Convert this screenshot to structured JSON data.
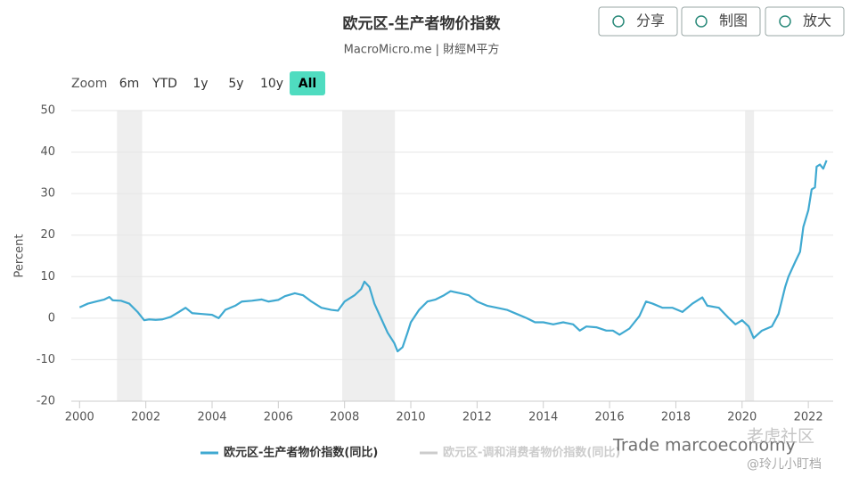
{
  "chart_data": {
    "type": "line",
    "title": "欧元区-生产者物价指数",
    "subtitle": "MacroMicro.me | 財經M平方",
    "y_label": "Percent",
    "buttons": [
      "分享",
      "制图",
      "放大"
    ],
    "zoom_label": "Zoom",
    "zoom_options": [
      "6m",
      "YTD",
      "1y",
      "5y",
      "10y",
      "All"
    ],
    "zoom_active": "All",
    "xlim": [
      1999.75,
      2022.75
    ],
    "xticks": [
      2000,
      2002,
      2004,
      2006,
      2008,
      2010,
      2012,
      2014,
      2016,
      2018,
      2020,
      2022
    ],
    "ylim": [
      -20,
      50
    ],
    "yticks": [
      -20,
      -10,
      0,
      10,
      20,
      30,
      40,
      50
    ],
    "grid": true,
    "shaded_ranges": [
      [
        2001.13,
        2001.89
      ],
      [
        2007.93,
        2009.52
      ],
      [
        2020.09,
        2020.36
      ]
    ],
    "shade_color": "#eeeeee",
    "x": [
      2000.0,
      2000.25,
      2000.5,
      2000.75,
      2000.9,
      2001.0,
      2001.25,
      2001.5,
      2001.75,
      2001.95,
      2002.1,
      2002.3,
      2002.5,
      2002.75,
      2003.0,
      2003.2,
      2003.4,
      2003.7,
      2004.0,
      2004.2,
      2004.4,
      2004.7,
      2004.9,
      2005.2,
      2005.5,
      2005.7,
      2006.0,
      2006.2,
      2006.5,
      2006.75,
      2007.0,
      2007.3,
      2007.6,
      2007.8,
      2008.0,
      2008.3,
      2008.5,
      2008.6,
      2008.75,
      2008.9,
      2009.1,
      2009.3,
      2009.5,
      2009.6,
      2009.75,
      2009.9,
      2010.0,
      2010.25,
      2010.5,
      2010.75,
      2011.0,
      2011.2,
      2011.5,
      2011.75,
      2012.0,
      2012.3,
      2012.6,
      2012.9,
      2013.2,
      2013.5,
      2013.75,
      2014.0,
      2014.3,
      2014.6,
      2014.9,
      2015.1,
      2015.3,
      2015.6,
      2015.9,
      2016.1,
      2016.3,
      2016.6,
      2016.9,
      2017.1,
      2017.3,
      2017.6,
      2017.9,
      2018.2,
      2018.5,
      2018.8,
      2018.95,
      2019.3,
      2019.6,
      2019.8,
      2020.0,
      2020.2,
      2020.35,
      2020.6,
      2020.9,
      2021.1,
      2021.3,
      2021.4,
      2021.6,
      2021.75,
      2021.85,
      2022.0,
      2022.1,
      2022.2,
      2022.25,
      2022.35,
      2022.45,
      2022.55
    ],
    "series": [
      {
        "name": "欧元区-生产者物价指数(同比)",
        "color": "#3fa9d1",
        "values": [
          2.6,
          3.5,
          4.0,
          4.5,
          5.1,
          4.3,
          4.2,
          3.5,
          1.5,
          -0.5,
          -0.3,
          -0.4,
          -0.3,
          0.3,
          1.5,
          2.5,
          1.2,
          1.0,
          0.8,
          0.0,
          2.0,
          3.0,
          4.0,
          4.2,
          4.5,
          4.0,
          4.4,
          5.3,
          6.0,
          5.5,
          4.0,
          2.5,
          2.0,
          1.8,
          4.0,
          5.5,
          7.0,
          8.8,
          7.5,
          3.5,
          0,
          -3.5,
          -6.0,
          -8.0,
          -7.0,
          -3.5,
          -1.0,
          2.0,
          4.0,
          4.5,
          5.5,
          6.5,
          6.0,
          5.5,
          4.0,
          3.0,
          2.5,
          2.0,
          1.0,
          0.0,
          -1.0,
          -1.0,
          -1.5,
          -1.0,
          -1.5,
          -3.0,
          -2.0,
          -2.2,
          -3.0,
          -3.0,
          -4.0,
          -2.5,
          0.5,
          4.0,
          3.5,
          2.5,
          2.5,
          1.5,
          3.5,
          5.0,
          3.0,
          2.5,
          0.0,
          -1.5,
          -0.5,
          -2.0,
          -4.8,
          -3.0,
          -2.0,
          1.0,
          7.5,
          10.0,
          13.5,
          16.0,
          22.0,
          26.0,
          31.0,
          31.5,
          36.5,
          37.0,
          36.0,
          38.0
        ]
      }
    ],
    "inactive_series": [
      {
        "name": "欧元区-调和消费者物价指数(同比)",
        "color": "#cccccc"
      }
    ],
    "watermarks": [
      "Trade marcoeconomy",
      "老虎社区",
      "@玲儿小盯档"
    ]
  }
}
